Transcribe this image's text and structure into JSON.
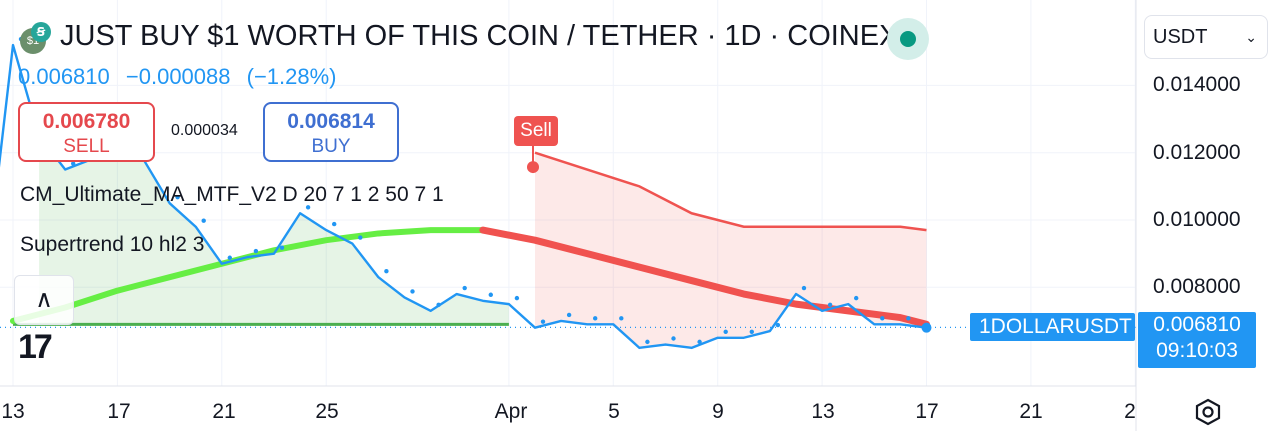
{
  "header": {
    "title": "JUST BUY $1 WORTH OF THIS COIN / TETHER · 1D · COINEX",
    "coin_icon": "coin-logo-icon",
    "brand_icon": "tradingview-badge-icon",
    "status_icon": "market-open-dot-icon",
    "last_price": "0.006810",
    "change": "−0.000088",
    "change_pct": "(−1.28%)"
  },
  "trade": {
    "sell_value": "0.006780",
    "sell_label": "SELL",
    "spread": "0.000034",
    "buy_value": "0.006814",
    "buy_label": "BUY"
  },
  "indicators": {
    "ma": "CM_Ultimate_MA_MTF_V2 D 20 7 1 2 50 7 1",
    "supertrend": "Supertrend 10 hl2 3",
    "signal": "Sell"
  },
  "controls": {
    "collapse": "∧",
    "logo": "17",
    "currency": "USDT",
    "currency_chevron": "⌄"
  },
  "price_scale": {
    "symbol": "1DOLLARUSDT",
    "last": "0.006810",
    "countdown": "09:10:03"
  },
  "colors": {
    "price_line": "#2196f3",
    "uptrend": "#4caf50",
    "downtrend": "#ef5350",
    "ma_up": "#66ee44",
    "ma_down": "#f0524f"
  },
  "chart_data": {
    "type": "line",
    "title": "JUST BUY $1 WORTH OF THIS COIN / TETHER · 1D · COINEX",
    "y_ticks": [
      "0.014000",
      "0.012000",
      "0.010000",
      "0.008000"
    ],
    "x_ticks": [
      "13",
      "17",
      "21",
      "25",
      "Apr",
      "5",
      "9",
      "13",
      "17",
      "21",
      "2"
    ],
    "x_tick_day": [
      0,
      4,
      8,
      12,
      19,
      23,
      27,
      31,
      35,
      39,
      43
    ],
    "ylim": [
      0.0054,
      0.0157
    ],
    "grid": true,
    "series": [
      {
        "name": "1DOLLARUSDT",
        "x": [
          -1,
          0,
          1,
          2,
          3,
          4,
          5,
          6,
          7,
          8,
          9,
          10,
          11,
          12,
          13,
          14,
          15,
          16,
          17,
          18,
          19,
          20,
          21,
          22,
          23,
          24,
          25,
          26,
          27,
          28,
          29,
          30,
          31,
          32,
          33,
          34,
          35
        ],
        "values": [
          0.0085,
          0.0152,
          0.0125,
          0.0115,
          0.0118,
          0.0125,
          0.0118,
          0.0105,
          0.0098,
          0.0087,
          0.0089,
          0.009,
          0.0102,
          0.0097,
          0.0093,
          0.0083,
          0.0077,
          0.0073,
          0.0078,
          0.0076,
          0.0075,
          0.0068,
          0.007,
          0.0069,
          0.0069,
          0.0062,
          0.0063,
          0.0062,
          0.0065,
          0.0065,
          0.0067,
          0.0078,
          0.0073,
          0.0075,
          0.0069,
          0.0069,
          0.0068
        ]
      },
      {
        "name": "MA",
        "x": [
          0,
          2,
          4,
          6,
          8,
          10,
          12,
          14,
          16,
          17,
          18,
          20,
          22,
          24,
          26,
          28,
          30,
          32,
          34,
          35
        ],
        "values": [
          0.007,
          0.0074,
          0.0079,
          0.0083,
          0.0087,
          0.0091,
          0.0094,
          0.0096,
          0.0097,
          0.0097,
          0.0097,
          0.0094,
          0.009,
          0.0086,
          0.0082,
          0.0078,
          0.0075,
          0.0073,
          0.0071,
          0.0069
        ]
      },
      {
        "name": "Supertrend up",
        "x": [
          0,
          19
        ],
        "values": [
          0.0069,
          0.0069
        ]
      },
      {
        "name": "Supertrend down",
        "x": [
          20,
          22,
          24,
          26,
          28,
          30,
          32,
          34,
          35
        ],
        "values": [
          0.012,
          0.0115,
          0.011,
          0.0102,
          0.0098,
          0.0098,
          0.0098,
          0.0098,
          0.0097
        ]
      }
    ],
    "signals": [
      {
        "label": "Sell",
        "x": 20,
        "value": 0.0119
      }
    ],
    "last": 0.00681
  }
}
